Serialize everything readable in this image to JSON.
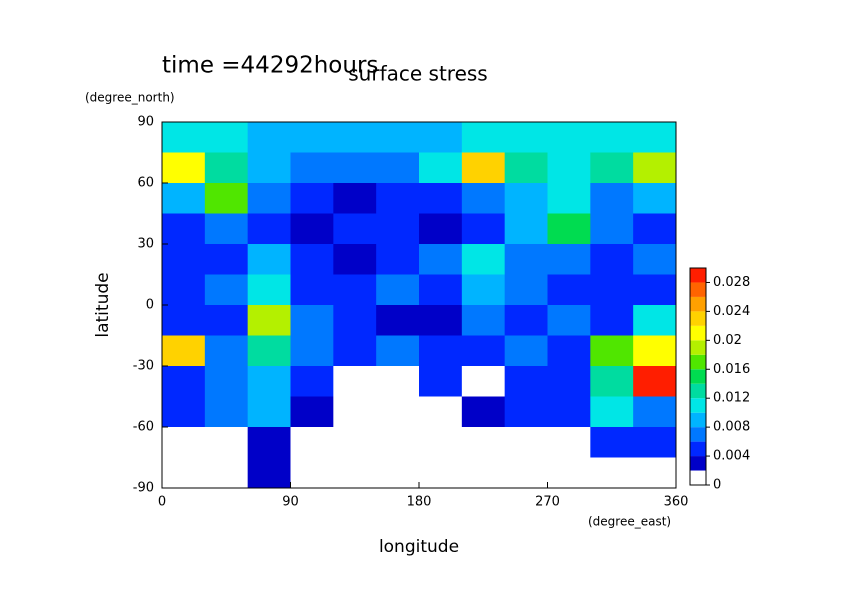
{
  "chart_data": {
    "type": "contour",
    "title": "surface stress",
    "subtitle": "time =44292hours",
    "x_label": "longitude",
    "y_label": "latitude",
    "x_unit": "(degree_east)",
    "y_unit": "(degree_north)",
    "xlim": [
      0,
      360
    ],
    "ylim": [
      -90,
      90
    ],
    "xticks": [
      0,
      90,
      180,
      270,
      360
    ],
    "yticks": [
      -90,
      -60,
      -30,
      0,
      30,
      60,
      90
    ],
    "x": [
      15,
      45,
      75,
      105,
      135,
      165,
      195,
      225,
      255,
      285,
      315,
      345
    ],
    "y": [
      82.5,
      67.5,
      52.5,
      37.5,
      22.5,
      7.5,
      -7.5,
      -22.5,
      -37.5,
      -52.5,
      -67.5,
      -82.5
    ],
    "z": [
      [
        0.01,
        0.01,
        0.009,
        0.009,
        0.008,
        0.009,
        0.009,
        0.01,
        0.01,
        0.01,
        0.01,
        0.011
      ],
      [
        0.02,
        0.012,
        0.008,
        0.006,
        0.006,
        0.007,
        0.01,
        0.022,
        0.012,
        0.01,
        0.012,
        0.018
      ],
      [
        0.008,
        0.016,
        0.006,
        0.004,
        0.003,
        0.004,
        0.005,
        0.006,
        0.008,
        0.01,
        0.006,
        0.008
      ],
      [
        0.004,
        0.006,
        0.004,
        0.002,
        0.005,
        0.004,
        0.003,
        0.004,
        0.008,
        0.014,
        0.006,
        0.005
      ],
      [
        0.004,
        0.004,
        0.008,
        0.004,
        0.003,
        0.005,
        0.006,
        0.01,
        0.006,
        0.007,
        0.004,
        0.006
      ],
      [
        0.004,
        0.006,
        0.01,
        0.005,
        0.004,
        0.006,
        0.004,
        0.008,
        0.006,
        0.005,
        0.004,
        0.005
      ],
      [
        0.004,
        0.005,
        0.018,
        0.006,
        0.004,
        0.002,
        0.003,
        0.007,
        0.005,
        0.006,
        0.005,
        0.01
      ],
      [
        0.022,
        0.006,
        0.012,
        0.006,
        0.004,
        0.006,
        0.005,
        0.004,
        0.006,
        0.005,
        0.016,
        0.02
      ],
      [
        0.005,
        0.006,
        0.008,
        0.004,
        0,
        0,
        0.004,
        0,
        0.004,
        0.004,
        0.012,
        0.028
      ],
      [
        0.004,
        0.006,
        0.008,
        0.003,
        0,
        0,
        0,
        0.002,
        0.004,
        0.004,
        0.01,
        0.006
      ],
      [
        0,
        0,
        0.003,
        0,
        0,
        0,
        0,
        0,
        0,
        0,
        0.004,
        0.004
      ],
      [
        0,
        0,
        0.003,
        0,
        0,
        0,
        0,
        0,
        0,
        0,
        0,
        0
      ]
    ],
    "levels": [
      0,
      0.002,
      0.004,
      0.006,
      0.008,
      0.01,
      0.012,
      0.014,
      0.016,
      0.018,
      0.02,
      0.022,
      0.024,
      0.026,
      0.028,
      0.03
    ],
    "colors": [
      "#ffffff",
      "#0000c8",
      "#0028ff",
      "#0078ff",
      "#00b4ff",
      "#00e6e6",
      "#00dca0",
      "#00dc50",
      "#50e600",
      "#b4f000",
      "#ffff00",
      "#ffd200",
      "#ffa000",
      "#ff6400",
      "#ff1e00"
    ],
    "colorbar_ticks": [
      0,
      0.004,
      0.008,
      0.012,
      0.016,
      0.02,
      0.024,
      0.028
    ]
  }
}
